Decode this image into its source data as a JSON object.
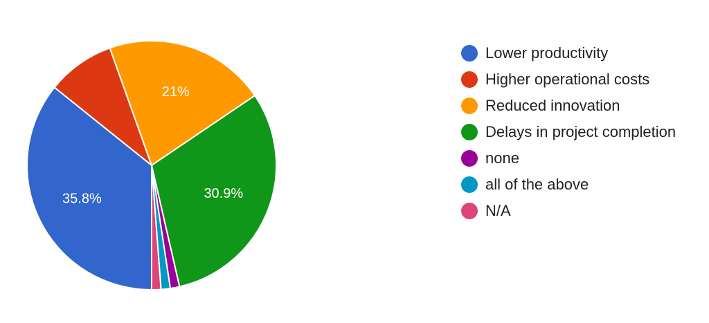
{
  "chart_data": {
    "type": "pie",
    "categories": [
      "Lower productivity",
      "Higher operational costs",
      "Reduced innovation",
      "Delays in project completion",
      "none",
      "all of the above",
      "N/A"
    ],
    "values": [
      35.8,
      8.8,
      21.0,
      30.9,
      1.2,
      1.2,
      1.2
    ],
    "value_labels": [
      "35.8%",
      "",
      "21%",
      "30.9%",
      "",
      "",
      ""
    ],
    "colors": [
      "#3366cc",
      "#dc3912",
      "#ff9900",
      "#109618",
      "#990099",
      "#0099c6",
      "#dd4477"
    ],
    "start_angle_deg": 90,
    "direction": "clockwise",
    "legend_position": "right"
  }
}
